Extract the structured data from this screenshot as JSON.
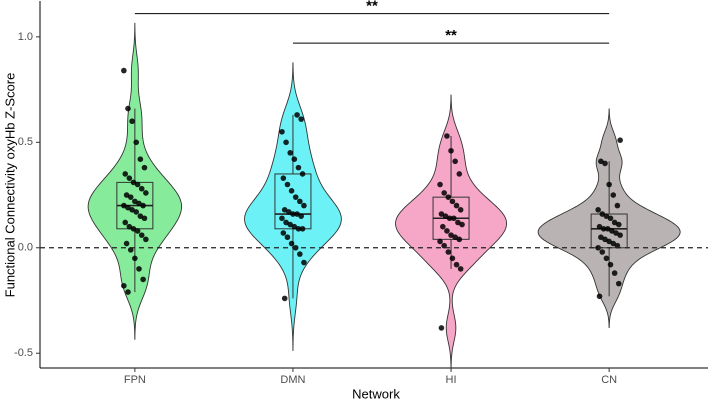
{
  "chart_data": {
    "type": "violin",
    "x_label": "Network",
    "y_label": "Functional Connectivity oxyHb Z-Score",
    "categories": [
      "FPN",
      "DMN",
      "HI",
      "CN"
    ],
    "ylim": [
      -0.57,
      1.17
    ],
    "yticks": [
      -0.5,
      {
        "value": 0,
        "label": "0.0"
      },
      0.5,
      {
        "value": 1,
        "label": "1.0"
      }
    ],
    "reference_line": 0,
    "groups": [
      {
        "color": "#86ec9c",
        "points": [
          0.84,
          0.66,
          0.6,
          0.5,
          0.42,
          0.38,
          0.35,
          0.33,
          0.31,
          0.3,
          0.28,
          0.26,
          0.25,
          0.24,
          0.22,
          0.21,
          0.2,
          0.2,
          0.19,
          0.18,
          0.17,
          0.15,
          0.14,
          0.12,
          0.1,
          0.09,
          0.08,
          0.06,
          0.04,
          0.02,
          -0.01,
          -0.05,
          -0.1,
          -0.15,
          -0.18,
          -0.21
        ],
        "box": {
          "low": -0.21,
          "q1": 0.09,
          "median": 0.2,
          "q3": 0.31,
          "high": 0.66
        }
      },
      {
        "color": "#6cf2f6",
        "points": [
          0.63,
          0.61,
          0.55,
          0.5,
          0.45,
          0.42,
          0.38,
          0.35,
          0.33,
          0.3,
          0.27,
          0.24,
          0.22,
          0.2,
          0.18,
          0.17,
          0.16,
          0.16,
          0.15,
          0.14,
          0.12,
          0.11,
          0.1,
          0.09,
          0.09,
          0.07,
          0.05,
          0.02,
          0.0,
          -0.03,
          -0.07,
          -0.24
        ],
        "box": {
          "low": -0.24,
          "q1": 0.09,
          "median": 0.16,
          "q3": 0.35,
          "high": 0.63
        }
      },
      {
        "color": "#f6a6c6",
        "points": [
          0.53,
          0.46,
          0.41,
          0.35,
          0.3,
          0.26,
          0.24,
          0.22,
          0.2,
          0.18,
          0.16,
          0.15,
          0.14,
          0.14,
          0.12,
          0.11,
          0.1,
          0.08,
          0.06,
          0.05,
          0.04,
          0.03,
          0.01,
          -0.02,
          -0.05,
          -0.08,
          -0.1,
          -0.38
        ],
        "box": {
          "low": -0.1,
          "q1": 0.04,
          "median": 0.14,
          "q3": 0.24,
          "high": 0.53
        }
      },
      {
        "color": "#bab3b3",
        "points": [
          0.51,
          0.41,
          0.4,
          0.3,
          0.25,
          0.2,
          0.18,
          0.16,
          0.15,
          0.14,
          0.12,
          0.11,
          0.1,
          0.09,
          0.09,
          0.08,
          0.07,
          0.06,
          0.05,
          0.04,
          0.03,
          0.02,
          0.01,
          0.0,
          -0.02,
          -0.05,
          -0.08,
          -0.12,
          -0.17,
          -0.23
        ],
        "box": {
          "low": -0.23,
          "q1": 0.0,
          "median": 0.09,
          "q3": 0.16,
          "high": 0.41
        }
      }
    ],
    "comparisons": [
      {
        "pair": [
          "FPN",
          "CN"
        ],
        "label": "**",
        "y": 1.11
      },
      {
        "pair": [
          "DMN",
          "CN"
        ],
        "label": "**",
        "y": 0.97
      }
    ]
  }
}
